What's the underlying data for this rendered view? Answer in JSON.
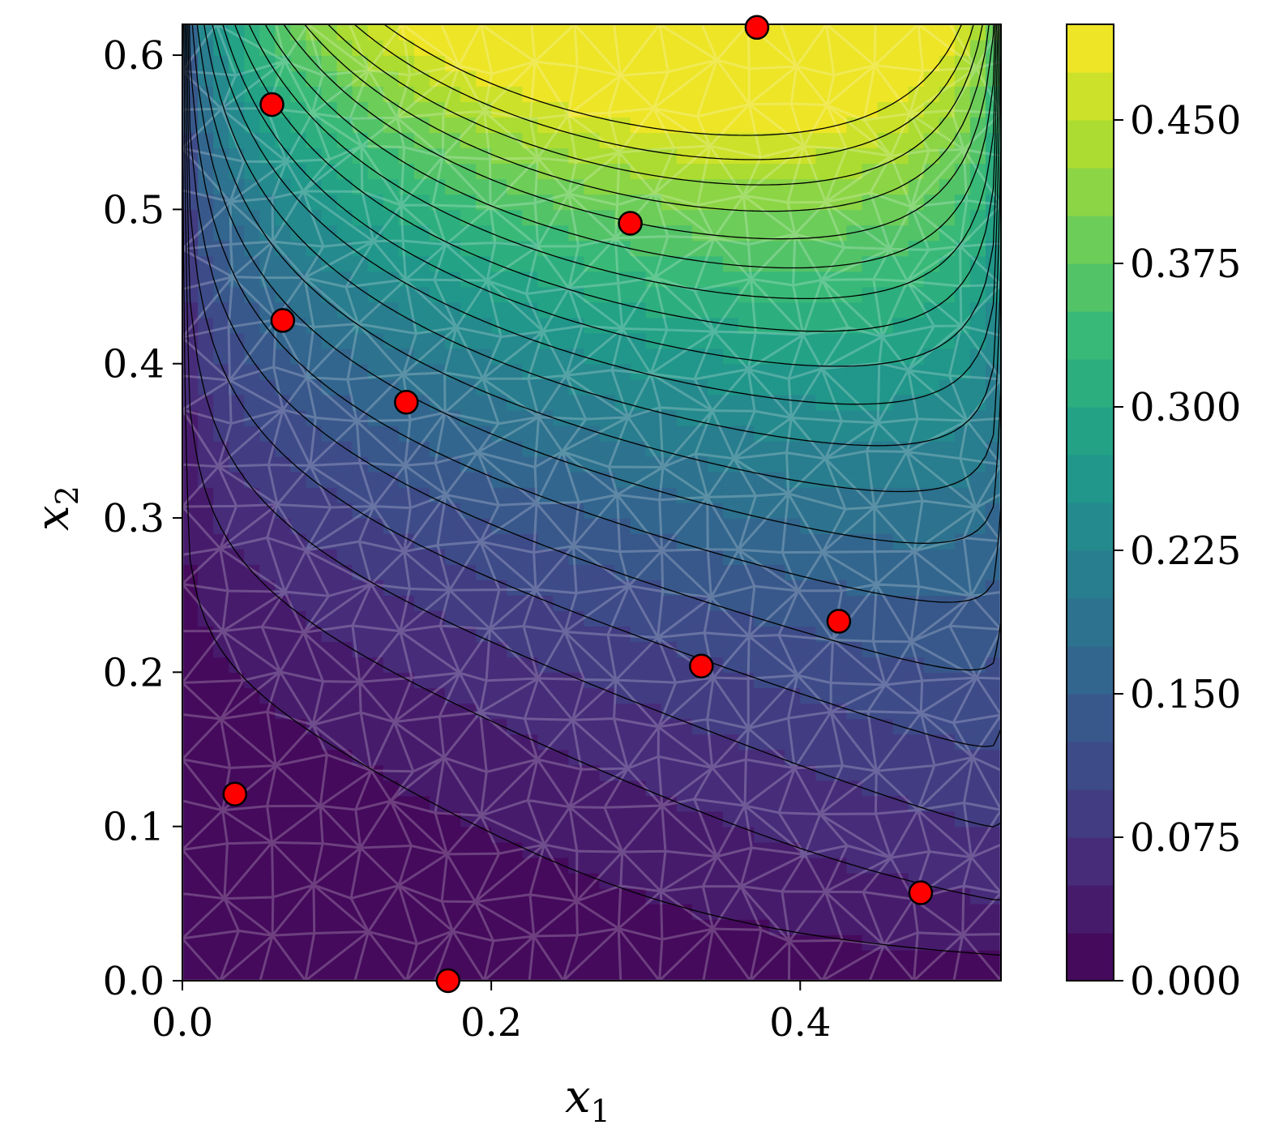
{
  "chart_data": {
    "type": "heatmap",
    "title": "",
    "xlabel": "x",
    "xlabel_sub": "1",
    "ylabel": "x",
    "ylabel_sub": "2",
    "xlim": [
      0.0,
      0.53
    ],
    "ylim": [
      0.0,
      0.62
    ],
    "x_ticks": [
      0.0,
      0.2,
      0.4
    ],
    "x_tick_labels": [
      "0.0",
      "0.2",
      "0.4"
    ],
    "y_ticks": [
      0.0,
      0.1,
      0.2,
      0.3,
      0.4,
      0.5,
      0.6
    ],
    "y_tick_labels": [
      "0.0",
      "0.1",
      "0.2",
      "0.3",
      "0.4",
      "0.5",
      "0.6"
    ],
    "colormap": "viridis",
    "color_range": [
      0.0,
      0.5
    ],
    "colorbar_ticks": [
      0.0,
      0.075,
      0.15,
      0.225,
      0.3,
      0.375,
      0.45
    ],
    "colorbar_tick_labels": [
      "0.000",
      "0.075",
      "0.150",
      "0.225",
      "0.300",
      "0.375",
      "0.450"
    ],
    "contour_levels": 20,
    "mesh_overlay": true,
    "grid": false,
    "points": {
      "color": "#ff0000",
      "edge_color": "#000000",
      "x": [
        0.372,
        0.058,
        0.29,
        0.065,
        0.145,
        0.425,
        0.336,
        0.034,
        0.478,
        0.172
      ],
      "y": [
        0.618,
        0.568,
        0.491,
        0.428,
        0.375,
        0.233,
        0.204,
        0.121,
        0.057,
        0.0
      ]
    }
  }
}
